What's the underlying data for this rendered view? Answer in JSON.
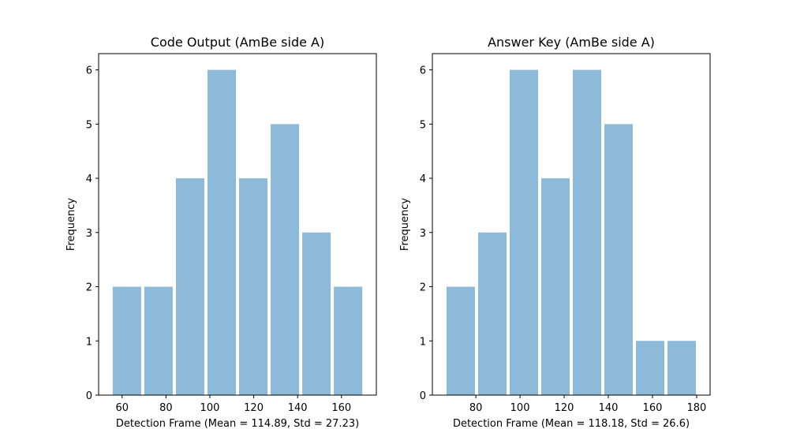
{
  "chart_data": [
    {
      "type": "bar",
      "title": "Code Output (AmBe side A)",
      "xlabel": "Detection Frame (Mean = 114.89, Std = 27.23)",
      "ylabel": "Frequency",
      "bins": [
        {
          "x0": 55.0,
          "x1": 69.4,
          "count": 2
        },
        {
          "x0": 69.4,
          "x1": 83.8,
          "count": 2
        },
        {
          "x0": 83.8,
          "x1": 98.2,
          "count": 4
        },
        {
          "x0": 98.2,
          "x1": 112.6,
          "count": 6
        },
        {
          "x0": 112.6,
          "x1": 127.0,
          "count": 4
        },
        {
          "x0": 127.0,
          "x1": 141.4,
          "count": 5
        },
        {
          "x0": 141.4,
          "x1": 155.8,
          "count": 3
        },
        {
          "x0": 155.8,
          "x1": 170.2,
          "count": 2
        }
      ],
      "xlim": [
        49.3,
        175.9
      ],
      "ylim": [
        0,
        6.3
      ],
      "xticks": [
        60,
        80,
        100,
        120,
        140,
        160
      ],
      "yticks": [
        0,
        1,
        2,
        3,
        4,
        5,
        6
      ],
      "grid": false
    },
    {
      "type": "bar",
      "title": "Answer Key (AmBe side A)",
      "xlabel": "Detection Frame (Mean = 118.18, Std = 26.6)",
      "ylabel": "Frequency",
      "bins": [
        {
          "x0": 66.0,
          "x1": 80.3,
          "count": 2
        },
        {
          "x0": 80.3,
          "x1": 94.6,
          "count": 3
        },
        {
          "x0": 94.6,
          "x1": 108.9,
          "count": 6
        },
        {
          "x0": 108.9,
          "x1": 123.2,
          "count": 4
        },
        {
          "x0": 123.2,
          "x1": 137.5,
          "count": 6
        },
        {
          "x0": 137.5,
          "x1": 151.8,
          "count": 5
        },
        {
          "x0": 151.8,
          "x1": 166.1,
          "count": 1
        },
        {
          "x0": 166.1,
          "x1": 180.4,
          "count": 1
        }
      ],
      "xlim": [
        60.3,
        186.1
      ],
      "ylim": [
        0,
        6.3
      ],
      "xticks": [
        80,
        100,
        120,
        140,
        160,
        180
      ],
      "yticks": [
        0,
        1,
        2,
        3,
        4,
        5,
        6
      ],
      "grid": false
    }
  ]
}
